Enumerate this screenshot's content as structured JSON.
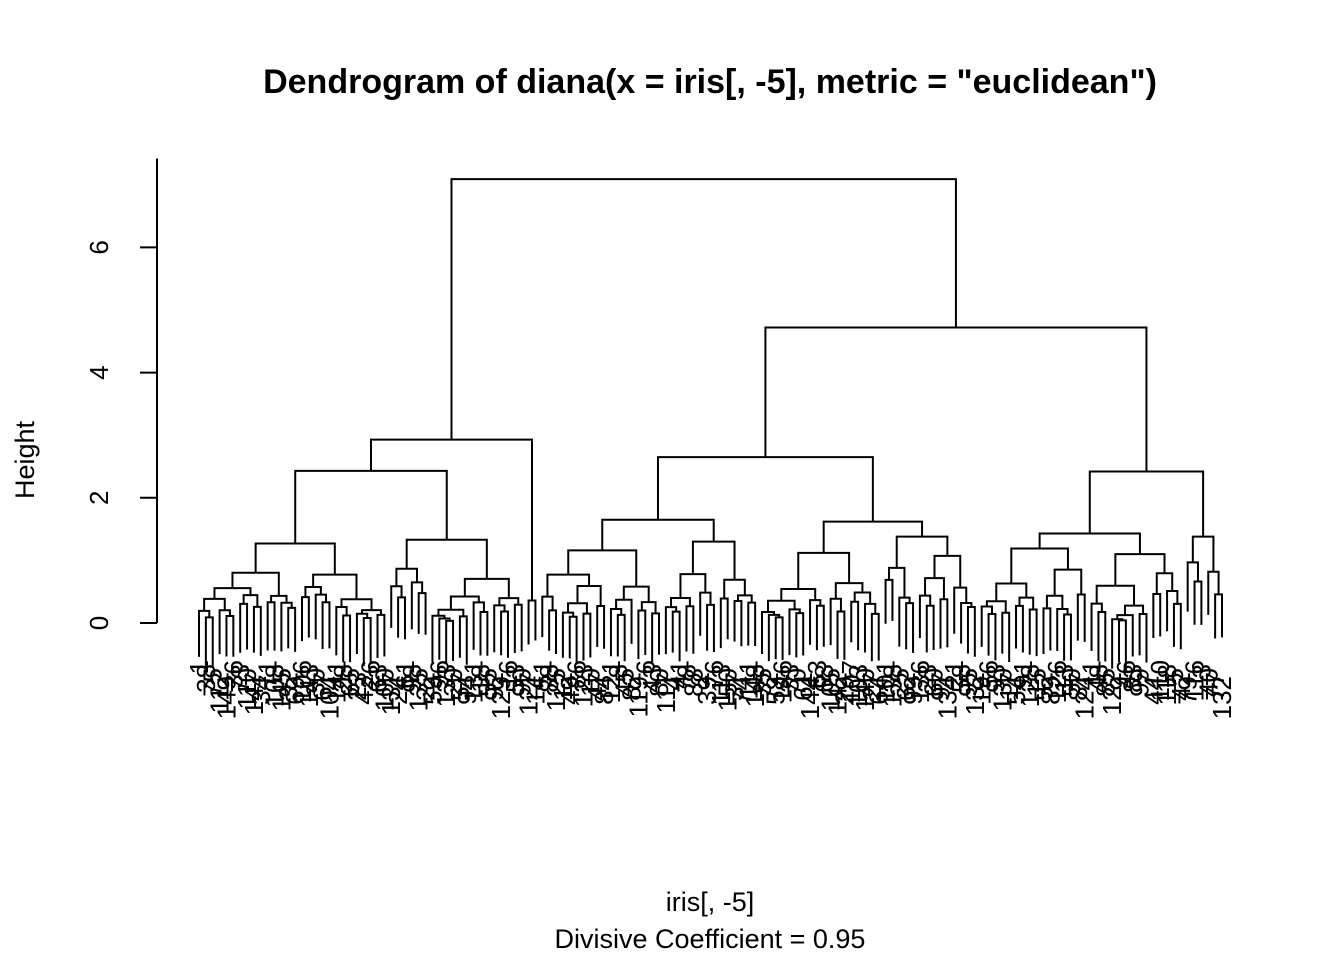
{
  "chart_data": {
    "type": "dendrogram",
    "title": "Dendrogram of  diana(x = iris[, -5], metric = \"euclidean\")",
    "xlabel": "iris[, -5]",
    "sub": "Divisive Coefficient =  0.95",
    "ylabel": "Height",
    "ylim": [
      0,
      7.1
    ],
    "yticks": [
      0,
      2,
      4,
      6
    ],
    "ytick_labels": [
      "0",
      "2",
      "4",
      "6"
    ],
    "n_leaves": 150,
    "root_height": 7.09,
    "top_splits": [
      {
        "name": "root",
        "height": 7.09
      },
      {
        "name": "left-group",
        "height": 2.93
      },
      {
        "name": "left-inner",
        "height": 2.43
      },
      {
        "name": "right-group",
        "height": 4.72
      },
      {
        "name": "right-left",
        "height": 2.65
      },
      {
        "name": "right-right",
        "height": 2.42
      },
      {
        "name": "right-left-a",
        "height": 1.65
      },
      {
        "name": "right-left-b",
        "height": 1.62
      },
      {
        "name": "right-right-a",
        "height": 1.43
      },
      {
        "name": "right-right-b",
        "height": 1.38
      }
    ],
    "visible_leaf_labels": [
      "42",
      "23",
      "88",
      "107",
      "61",
      "63",
      "58",
      "99",
      "110",
      "132"
    ]
  }
}
